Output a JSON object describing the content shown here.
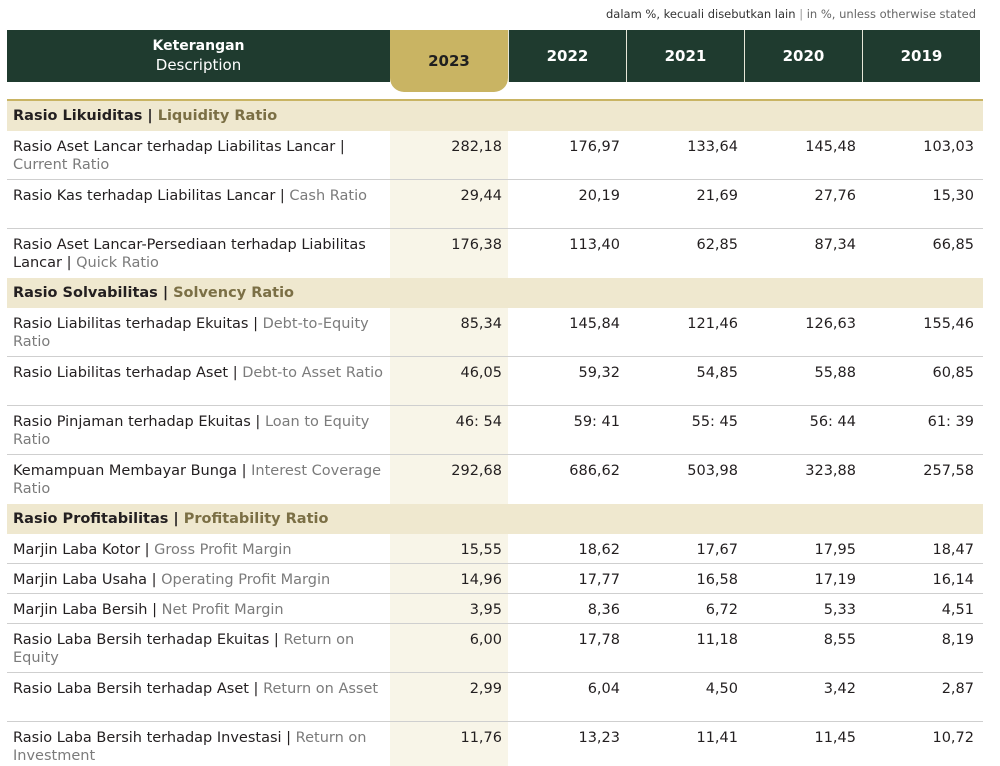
{
  "note": {
    "id": "dalam %, kecuali disebutkan lain",
    "sep": "|",
    "en": "in %, unless otherwise stated"
  },
  "header": {
    "desc_id": "Keterangan",
    "desc_en": "Description",
    "years": [
      "2023",
      "2022",
      "2021",
      "2020",
      "2019"
    ]
  },
  "sections": [
    {
      "title_id": "Rasio Likuiditas",
      "title_en": "Liquidity Ratio",
      "rows": [
        {
          "id": "Rasio Aset Lancar terhadap Liabilitas Lancar",
          "en": "Current Ratio",
          "values": [
            "282,18",
            "176,97",
            "133,64",
            "145,48",
            "103,03"
          ]
        },
        {
          "id": "Rasio Kas terhadap Liabilitas Lancar",
          "en": "Cash Ratio",
          "values": [
            "29,44",
            "20,19",
            "21,69",
            "27,76",
            "15,30"
          ]
        },
        {
          "id": "Rasio Aset Lancar-Persediaan terhadap Liabilitas Lancar",
          "en": "Quick Ratio",
          "values": [
            "176,38",
            "113,40",
            "62,85",
            "87,34",
            "66,85"
          ]
        }
      ]
    },
    {
      "title_id": "Rasio Solvabilitas",
      "title_en": "Solvency Ratio",
      "rows": [
        {
          "id": "Rasio Liabilitas terhadap Ekuitas",
          "en": "Debt-to-Equity Ratio",
          "values": [
            "85,34",
            "145,84",
            "121,46",
            "126,63",
            "155,46"
          ]
        },
        {
          "id": "Rasio Liabilitas terhadap Aset",
          "en": "Debt-to Asset Ratio",
          "values": [
            "46,05",
            "59,32",
            "54,85",
            "55,88",
            "60,85"
          ]
        },
        {
          "id": "Rasio Pinjaman terhadap Ekuitas",
          "en": "Loan to Equity Ratio",
          "values": [
            "46: 54",
            "59: 41",
            "55: 45",
            "56: 44",
            "61: 39"
          ]
        },
        {
          "id": "Kemampuan Membayar Bunga",
          "en": "Interest Coverage Ratio",
          "values": [
            "292,68",
            "686,62",
            "503,98",
            "323,88",
            "257,58"
          ]
        }
      ]
    },
    {
      "title_id": "Rasio Profitabilitas",
      "title_en": "Profitability Ratio",
      "rows": [
        {
          "id": "Marjin Laba Kotor",
          "en": "Gross Profit Margin",
          "values": [
            "15,55",
            "18,62",
            "17,67",
            "17,95",
            "18,47"
          ]
        },
        {
          "id": "Marjin Laba Usaha",
          "en": "Operating Profit Margin",
          "values": [
            "14,96",
            "17,77",
            "16,58",
            "17,19",
            "16,14"
          ]
        },
        {
          "id": "Marjin Laba Bersih",
          "en": "Net Profit Margin",
          "values": [
            "3,95",
            "8,36",
            "6,72",
            "5,33",
            "4,51"
          ]
        },
        {
          "id": "Rasio Laba Bersih terhadap Ekuitas",
          "en": "Return on Equity",
          "values": [
            "6,00",
            "17,78",
            "11,18",
            "8,55",
            "8,19"
          ]
        },
        {
          "id": "Rasio Laba Bersih terhadap Aset",
          "en": "Return on Asset",
          "values": [
            "2,99",
            "6,04",
            "4,50",
            "3,42",
            "2,87"
          ]
        },
        {
          "id": "Rasio Laba Bersih terhadap Investasi",
          "en": "Return on Investment",
          "values": [
            "11,76",
            "13,23",
            "11,41",
            "11,45",
            "10,72"
          ]
        }
      ]
    }
  ]
}
